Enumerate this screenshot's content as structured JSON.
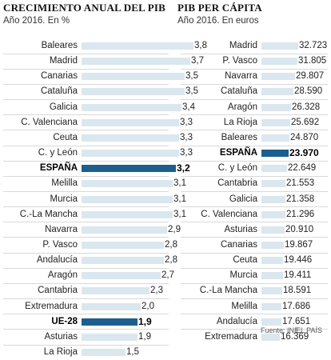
{
  "source_label": "Fuente: INE.",
  "publisher": "EL PAÍS",
  "chart_data": [
    {
      "type": "bar",
      "title": "CRECIMIENTO ANUAL DEL PIB",
      "subtitle": "Año 2016. En %",
      "highlight_color": "#1c5f8e",
      "bar_color": "#dbe7ee",
      "categories": [
        "Baleares",
        "Madrid",
        "Canarias",
        "Cataluña",
        "Galicia",
        "C. Valenciana",
        "Ceuta",
        "C. y León",
        "ESPAÑA",
        "Melilla",
        "Murcia",
        "C.-La Mancha",
        "Navarra",
        "P. Vasco",
        "Andalucía",
        "Aragón",
        "Cantabria",
        "Extremadura",
        "UE-28",
        "Asturias",
        "La Rioja"
      ],
      "values": [
        3.8,
        3.7,
        3.5,
        3.5,
        3.4,
        3.3,
        3.3,
        3.3,
        3.2,
        3.1,
        3.1,
        3.1,
        2.9,
        2.8,
        2.8,
        2.7,
        2.3,
        2.0,
        1.9,
        1.9,
        1.5
      ],
      "value_labels": [
        "3,8",
        "3,7",
        "3,5",
        "3,5",
        "3,4",
        "3,3",
        "3,3",
        "3,3",
        "3,2",
        "3,1",
        "3,1",
        "3,1",
        "2,9",
        "2,8",
        "2,8",
        "2,7",
        "2,3",
        "2,0",
        "1,9",
        "1,9",
        "1,5"
      ],
      "highlighted": [
        "ESPAÑA",
        "UE-28"
      ]
    },
    {
      "type": "bar",
      "title": "PIB PER CÁPITA",
      "subtitle": "Año 2016. En euros",
      "highlight_color": "#1c5f8e",
      "bar_color": "#dbe7ee",
      "categories": [
        "Madrid",
        "P. Vasco",
        "Navarra",
        "Cataluña",
        "Aragón",
        "La Rioja",
        "Baleares",
        "ESPAÑA",
        "C. y León",
        "Cantabria",
        "Galicia",
        "C. Valenciana",
        "Asturias",
        "Canarias",
        "Ceuta",
        "Murcia",
        "C.-La Mancha",
        "Melilla",
        "Andalucía",
        "Extremadura"
      ],
      "values": [
        32723,
        31805,
        29807,
        28590,
        26328,
        25692,
        24870,
        23970,
        22649,
        21553,
        21358,
        21296,
        20910,
        19867,
        19446,
        19411,
        18591,
        17686,
        17651,
        16369
      ],
      "value_labels": [
        "32.723",
        "31.805",
        "29.807",
        "28.590",
        "26.328",
        "25.692",
        "24.870",
        "23.970",
        "22.649",
        "21.553",
        "21.358",
        "21.296",
        "20.910",
        "19.867",
        "19.446",
        "19.411",
        "18.591",
        "17.686",
        "17.651",
        "16.369"
      ],
      "highlighted": [
        "ESPAÑA"
      ]
    }
  ]
}
